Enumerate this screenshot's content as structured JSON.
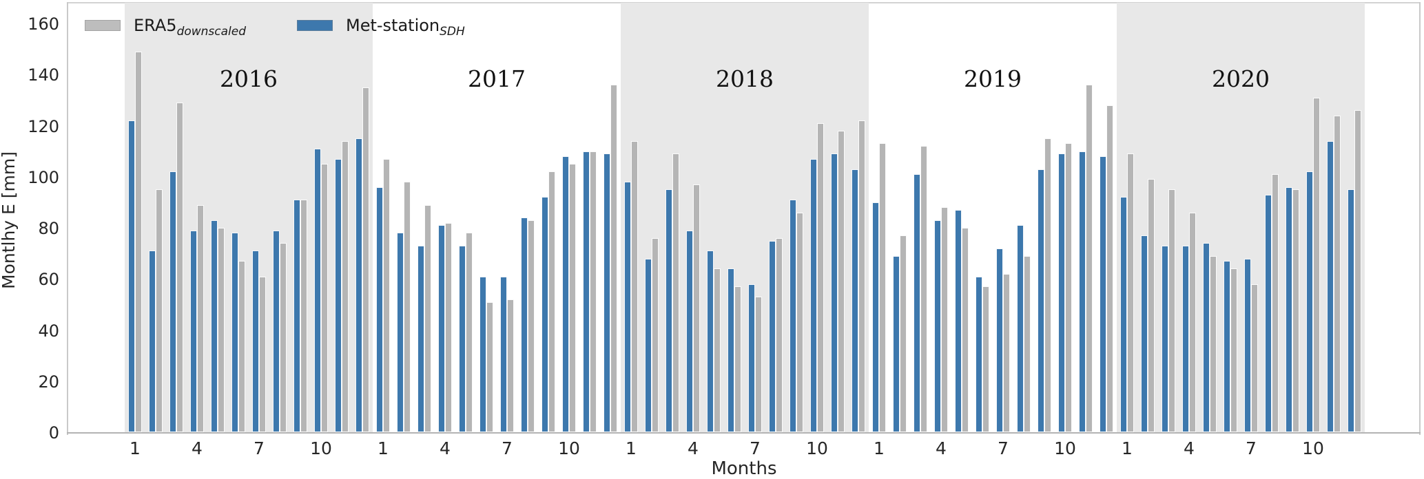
{
  "legend": {
    "entries": [
      {
        "id": "era5",
        "main": "ERA5",
        "sub": "downscaled",
        "color": "#bdbdbd"
      },
      {
        "id": "met-station",
        "main": "Met-station",
        "sub": "SDH",
        "color": "#3d78ad"
      }
    ]
  },
  "chart_data": {
    "type": "bar",
    "title": "",
    "ylabel": "Montlhy E [mm]",
    "xlabel": "Months",
    "ylim": [
      0,
      160
    ],
    "yticks": [
      0,
      20,
      40,
      60,
      80,
      100,
      120,
      140,
      160
    ],
    "xtick_months": [
      1,
      4,
      7,
      10
    ],
    "months_per_year": 12,
    "grid": false,
    "legend_position": "upper-left-inside",
    "band_color": "#e8e8e8",
    "background": "#ffffff",
    "years": [
      {
        "label": "2016",
        "shaded": true
      },
      {
        "label": "2017",
        "shaded": false
      },
      {
        "label": "2018",
        "shaded": true
      },
      {
        "label": "2019",
        "shaded": false
      },
      {
        "label": "2020",
        "shaded": true
      }
    ],
    "series": [
      {
        "name": "Met-station_SDH",
        "legend_main": "Met-station",
        "legend_sub": "SDH",
        "color": "#3d78ad",
        "pair_position": "left",
        "values": [
          122,
          71,
          102,
          79,
          83,
          78,
          71,
          79,
          91,
          111,
          107,
          115,
          96,
          78,
          73,
          81,
          73,
          61,
          61,
          84,
          92,
          108,
          110,
          109,
          98,
          68,
          95,
          79,
          71,
          64,
          58,
          75,
          91,
          107,
          109,
          103,
          90,
          69,
          101,
          83,
          87,
          61,
          72,
          81,
          103,
          109,
          110,
          108,
          92,
          77,
          73,
          73,
          74,
          67,
          68,
          93,
          96,
          102,
          114,
          95
        ]
      },
      {
        "name": "ERA5_downscaled",
        "legend_main": "ERA5",
        "legend_sub": "downscaled",
        "color": "#b5b5b5",
        "pair_position": "right",
        "values": [
          149,
          95,
          129,
          89,
          80,
          67,
          61,
          74,
          91,
          105,
          114,
          135,
          107,
          98,
          89,
          82,
          78,
          51,
          52,
          83,
          102,
          105,
          110,
          136,
          114,
          76,
          109,
          97,
          64,
          57,
          53,
          76,
          86,
          121,
          118,
          122,
          113,
          77,
          112,
          88,
          80,
          57,
          62,
          69,
          115,
          113,
          136,
          128,
          109,
          99,
          95,
          86,
          69,
          64,
          58,
          101,
          95,
          131,
          124,
          126
        ]
      }
    ]
  }
}
